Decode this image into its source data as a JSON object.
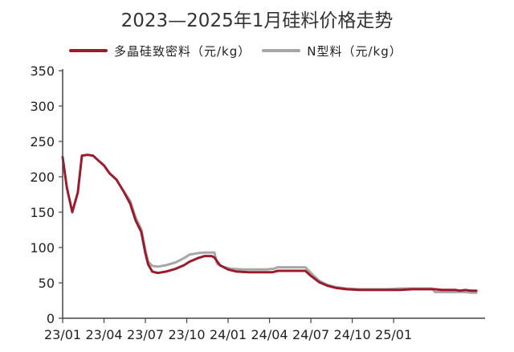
{
  "chart_data": {
    "type": "line",
    "title": "2023—2025年1月硅料价格走势",
    "xlabel": "",
    "ylabel": "",
    "ylim": [
      0,
      350
    ],
    "yticks": [
      0,
      50,
      100,
      150,
      200,
      250,
      300,
      350
    ],
    "xticks": [
      "23/01",
      "23/04",
      "23/07",
      "23/10",
      "24/01",
      "24/04",
      "24/07",
      "24/10",
      "25/01"
    ],
    "x_unit": "months since 2023/01",
    "legend_position": "top",
    "grid": false,
    "series": [
      {
        "name": "多晶硅致密料（元/kg）",
        "color": "#9b1b2c",
        "points": [
          [
            0.0,
            228
          ],
          [
            0.3,
            185
          ],
          [
            0.7,
            150
          ],
          [
            1.1,
            178
          ],
          [
            1.4,
            230
          ],
          [
            1.8,
            231
          ],
          [
            2.2,
            230
          ],
          [
            2.6,
            223
          ],
          [
            3.0,
            216
          ],
          [
            3.4,
            205
          ],
          [
            3.9,
            196
          ],
          [
            4.4,
            180
          ],
          [
            4.9,
            162
          ],
          [
            5.3,
            138
          ],
          [
            5.7,
            122
          ],
          [
            6.0,
            92
          ],
          [
            6.2,
            76
          ],
          [
            6.5,
            66
          ],
          [
            6.9,
            64
          ],
          [
            7.5,
            66
          ],
          [
            8.2,
            70
          ],
          [
            8.8,
            75
          ],
          [
            9.2,
            80
          ],
          [
            9.8,
            85
          ],
          [
            10.3,
            88
          ],
          [
            10.8,
            88
          ],
          [
            11.0,
            86
          ],
          [
            11.4,
            75
          ],
          [
            12.0,
            69
          ],
          [
            12.6,
            66
          ],
          [
            13.5,
            65
          ],
          [
            14.5,
            65
          ],
          [
            15.2,
            65
          ],
          [
            15.6,
            67
          ],
          [
            16.2,
            67
          ],
          [
            17.0,
            67
          ],
          [
            17.6,
            67
          ],
          [
            18.0,
            60
          ],
          [
            18.6,
            51
          ],
          [
            19.2,
            46
          ],
          [
            19.8,
            43
          ],
          [
            20.6,
            41
          ],
          [
            21.5,
            40
          ],
          [
            22.5,
            40
          ],
          [
            23.5,
            40
          ],
          [
            24.5,
            40
          ],
          [
            25.3,
            41
          ],
          [
            26.0,
            41
          ],
          [
            26.6,
            41
          ],
          [
            27.0,
            41
          ],
          [
            27.5,
            40
          ],
          [
            28.0,
            40
          ],
          [
            28.5,
            40
          ],
          [
            28.8,
            39
          ],
          [
            29.2,
            40
          ],
          [
            29.6,
            39
          ],
          [
            30.0,
            39
          ]
        ]
      },
      {
        "name": "N型料（元/kg）",
        "color": "#a7a7a7",
        "points": [
          [
            4.4,
            180
          ],
          [
            4.9,
            166
          ],
          [
            5.3,
            142
          ],
          [
            5.7,
            126
          ],
          [
            6.0,
            96
          ],
          [
            6.2,
            80
          ],
          [
            6.5,
            74
          ],
          [
            6.9,
            73
          ],
          [
            7.5,
            75
          ],
          [
            8.2,
            79
          ],
          [
            8.8,
            85
          ],
          [
            9.2,
            90
          ],
          [
            9.8,
            92
          ],
          [
            10.3,
            93
          ],
          [
            11.0,
            93
          ],
          [
            11.2,
            77
          ],
          [
            11.6,
            73
          ],
          [
            12.2,
            70
          ],
          [
            13.0,
            69
          ],
          [
            14.0,
            69
          ],
          [
            14.8,
            69
          ],
          [
            15.3,
            70
          ],
          [
            15.6,
            72
          ],
          [
            16.3,
            72
          ],
          [
            17.0,
            72
          ],
          [
            17.6,
            72
          ],
          [
            18.0,
            64
          ],
          [
            18.6,
            53
          ],
          [
            19.2,
            47
          ],
          [
            19.8,
            44
          ],
          [
            20.6,
            42
          ],
          [
            21.5,
            41
          ],
          [
            22.5,
            41
          ],
          [
            23.5,
            41
          ],
          [
            24.5,
            42
          ],
          [
            25.3,
            42
          ],
          [
            26.0,
            42
          ],
          [
            26.8,
            42
          ],
          [
            27.0,
            37
          ],
          [
            27.5,
            37
          ],
          [
            28.5,
            37
          ],
          [
            29.2,
            37
          ],
          [
            29.6,
            36
          ],
          [
            30.0,
            36
          ]
        ]
      }
    ]
  }
}
